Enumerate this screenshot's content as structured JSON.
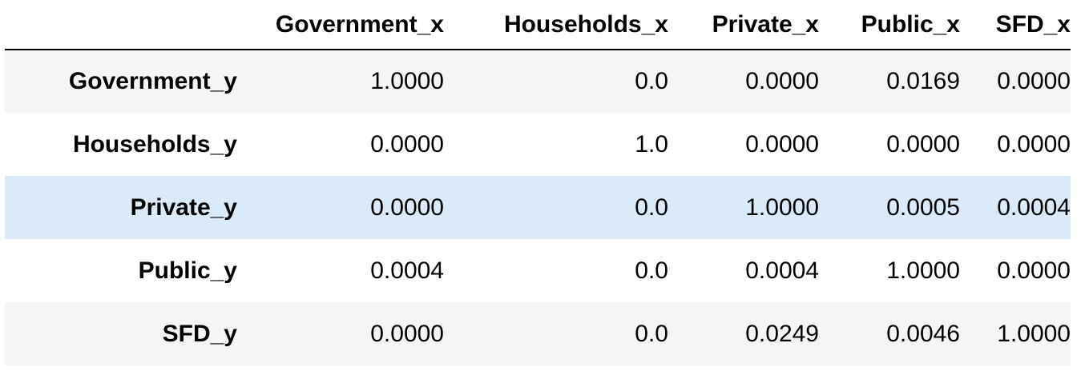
{
  "table": {
    "index_header": "",
    "columns": [
      "Government_x",
      "Households_x",
      "Private_x",
      "Public_x",
      "SFD_x"
    ],
    "highlighted_row": 2,
    "rows": [
      {
        "label": "Government_y",
        "values": [
          "1.0000",
          "0.0",
          "0.0000",
          "0.0169",
          "0.0000"
        ]
      },
      {
        "label": "Households_y",
        "values": [
          "0.0000",
          "1.0",
          "0.0000",
          "0.0000",
          "0.0000"
        ]
      },
      {
        "label": "Private_y",
        "values": [
          "0.0000",
          "0.0",
          "1.0000",
          "0.0005",
          "0.0004"
        ]
      },
      {
        "label": "Public_y",
        "values": [
          "0.0004",
          "0.0",
          "0.0004",
          "1.0000",
          "0.0000"
        ]
      },
      {
        "label": "SFD_y",
        "values": [
          "0.0000",
          "0.0",
          "0.0249",
          "0.0046",
          "1.0000"
        ]
      }
    ]
  },
  "colors": {
    "stripe": "#f5f5f5",
    "highlight": "#dbeaf8",
    "header_rule": "#000000"
  }
}
